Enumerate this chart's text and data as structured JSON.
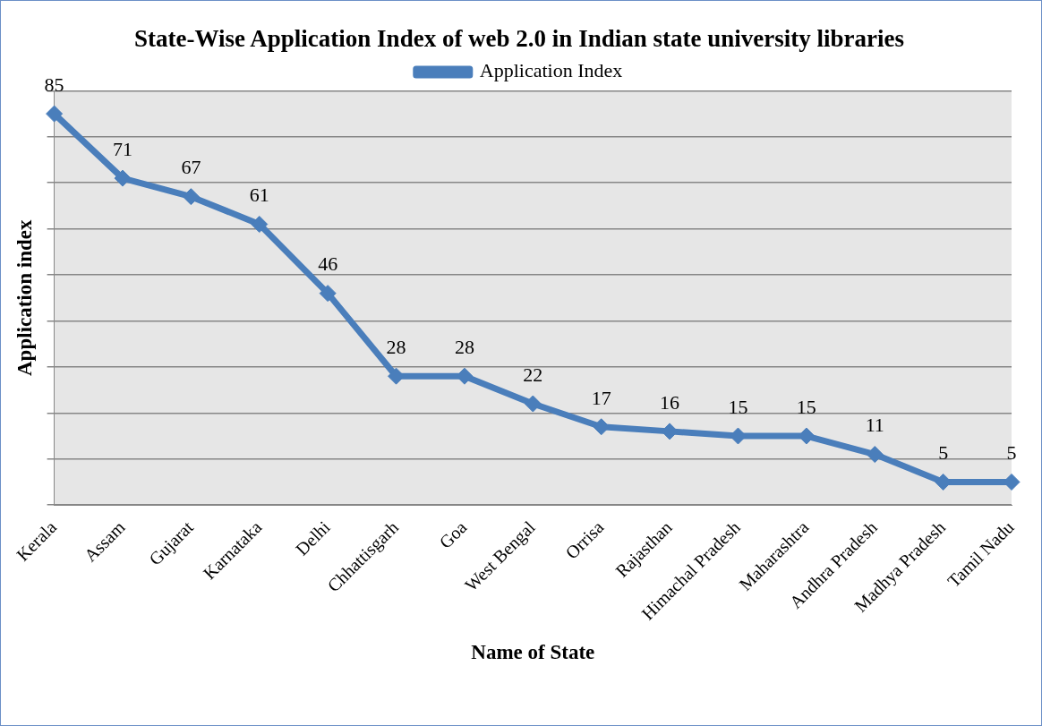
{
  "chart_data": {
    "type": "line",
    "title": "State-Wise Application Index of web 2.0 in Indian state university libraries",
    "xlabel": "Name of State",
    "ylabel": "Application index",
    "categories": [
      "Kerala",
      "Assam",
      "Gujarat",
      "Karnataka",
      "Delhi",
      "Chhattisgarh",
      "Goa",
      "West Bengal",
      "Orrisa",
      "Rajasthan",
      "Himachal Pradesh",
      "Maharashtra",
      "Andhra Pradesh",
      "Madhya Pradesh",
      "Tamil Nadu"
    ],
    "series": [
      {
        "name": "Application Index",
        "color": "#4a7ebb",
        "values": [
          85,
          71,
          67,
          61,
          46,
          28,
          28,
          22,
          17,
          16,
          15,
          15,
          11,
          5,
          5
        ]
      }
    ],
    "ylim": [
      0,
      90
    ],
    "yticks": [
      {
        "value": 0,
        "label": null
      },
      {
        "value": 10,
        "label": null
      },
      {
        "value": 20,
        "label": null
      },
      {
        "value": 30,
        "label": null
      },
      {
        "value": 40,
        "label": null
      },
      {
        "value": 50,
        "label": null
      },
      {
        "value": 60,
        "label": null
      },
      {
        "value": 70,
        "label": null
      },
      {
        "value": 80,
        "label": null
      },
      {
        "value": 90,
        "label": null
      }
    ],
    "tick_labels": "x",
    "grid": "y",
    "legend": "top",
    "marker": "diamond",
    "line_style": "solid",
    "data_labels": true
  }
}
